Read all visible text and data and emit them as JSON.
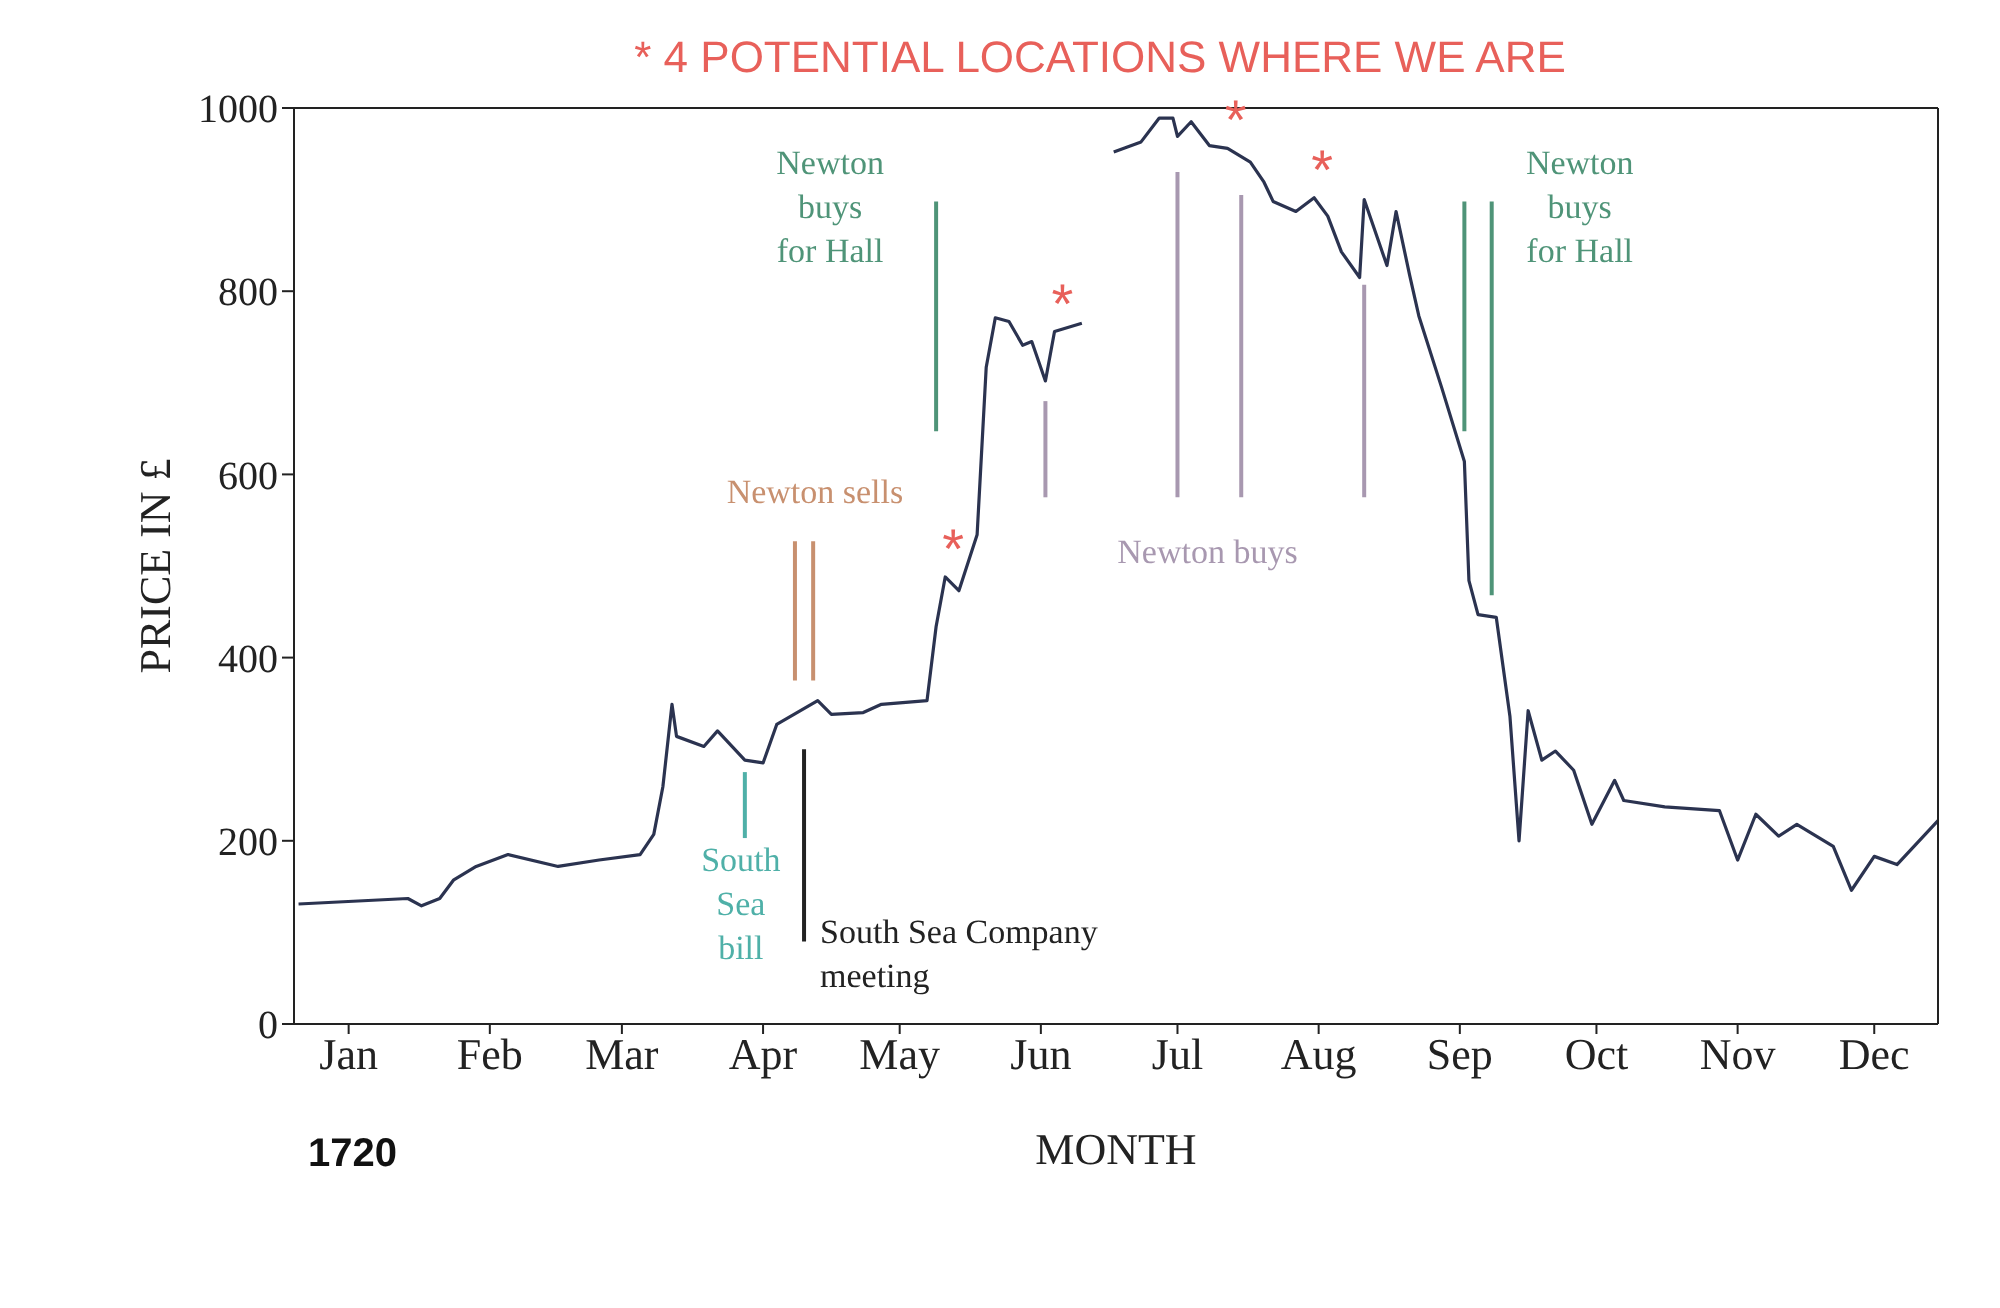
{
  "chart_data": {
    "type": "line",
    "title": "* 4 POTENTIAL LOCATIONS WHERE WE ARE",
    "xlabel": "MONTH",
    "ylabel": "PRICE IN £",
    "x": [
      "--01-04",
      "--01-28",
      "--01-31",
      "--02-04",
      "--02-07",
      "--02-12",
      "--02-19",
      "--03-01",
      "--03-10",
      "--03-19",
      "--03-22",
      "--03-24",
      "--03-26",
      "--03-27",
      "--04-02",
      "--04-05",
      "--04-11",
      "--04-15",
      "--04-18",
      "--04-27",
      "--04-30",
      "--05-07",
      "--05-11",
      "--05-21",
      "--05-23",
      "--05-25",
      "--05-28",
      "--06-01",
      "--06-03",
      "--06-05",
      "--06-08",
      "--06-11",
      "--06-13",
      "--06-16",
      "--06-18",
      "--06-24",
      "--06-28",
      "--07-01",
      "--07-07",
      "--07-11",
      "--07-14",
      "--07-15",
      "--07-18",
      "--07-22",
      "--07-26",
      "--07-31",
      "--08-03",
      "--08-05",
      "--08-10",
      "--08-14",
      "--08-17",
      "--08-20",
      "--08-24",
      "--08-25",
      "--08-30",
      "--09-01",
      "--09-04",
      "--09-06",
      "--09-11",
      "--09-16",
      "--09-17",
      "--09-19",
      "--09-23",
      "--09-26",
      "--09-28",
      "--09-30",
      "--10-03",
      "--10-06",
      "--10-10",
      "--10-14",
      "--10-19",
      "--10-21",
      "--10-30",
      "--11-11",
      "--11-15",
      "--11-19",
      "--11-24",
      "--11-28",
      "--12-06",
      "--12-10",
      "--12-15",
      "--12-20",
      "--12-29"
    ],
    "series": [
      {
        "color": "#2b3350",
        "values": [
          131,
          137,
          129,
          137,
          157,
          172,
          185,
          172,
          179,
          185,
          207,
          259,
          349,
          314,
          303,
          320,
          288,
          285,
          327,
          353,
          338,
          340,
          349,
          353,
          434,
          488,
          473,
          534,
          717,
          771,
          767,
          741,
          745,
          702,
          756,
          765,
          null,
          952,
          963,
          989,
          989,
          969,
          985,
          959,
          956,
          941,
          919,
          898,
          887,
          902,
          882,
          843,
          815,
          900,
          828,
          887,
          817,
          773,
          695,
          614,
          484,
          447,
          444,
          336,
          200,
          342,
          288,
          298,
          277,
          218,
          266,
          244,
          237,
          233,
          179,
          229,
          205,
          218,
          194,
          146,
          183,
          174,
          222
        ]
      }
    ],
    "xlim": [
      "--01-03",
      "--12-29"
    ],
    "xticks": [
      {
        "value": "--01-15",
        "label": "Jan"
      },
      {
        "value": "--02-15",
        "label": "Feb"
      },
      {
        "value": "--03-15",
        "label": "Mar"
      },
      {
        "value": "--04-15",
        "label": "Apr"
      },
      {
        "value": "--05-15",
        "label": "May"
      },
      {
        "value": "--06-15",
        "label": "Jun"
      },
      {
        "value": "--07-15",
        "label": "Jul"
      },
      {
        "value": "--08-15",
        "label": "Aug"
      },
      {
        "value": "--09-15",
        "label": "Sep"
      },
      {
        "value": "--10-15",
        "label": "Oct"
      },
      {
        "value": "--11-15",
        "label": "Nov"
      },
      {
        "value": "--12-15",
        "label": "Dec"
      }
    ],
    "ylim": [
      0,
      1000
    ],
    "yticks": [
      0,
      200,
      400,
      600,
      800,
      1000
    ],
    "ref_lines": [
      {
        "axis": "x",
        "value": "--04-11",
        "color": "#4fb0a8",
        "label": "South\nSea\nbill"
      },
      {
        "axis": "x",
        "value": "--04-24",
        "color": "#222222",
        "label": "South Sea Company\nmeeting"
      },
      {
        "axis": "x",
        "value": "--04-22",
        "color": "#c8906f",
        "label": "Newton sells"
      },
      {
        "axis": "x",
        "value": "--04-26",
        "color": "#c8906f"
      },
      {
        "axis": "x",
        "value": "--05-23",
        "color": "#4f9478",
        "label": "Newton\nbuys\nfor Hall"
      },
      {
        "axis": "x",
        "value": "--09-16",
        "color": "#4f9478"
      },
      {
        "axis": "x",
        "value": "--09-22",
        "color": "#4f9478",
        "label": "Newton\nbuys\nfor Hall"
      },
      {
        "axis": "x",
        "value": "--06-16",
        "color": "#a898b0"
      },
      {
        "axis": "x",
        "value": "--07-15",
        "color": "#a898b0",
        "label": "Newton buys"
      },
      {
        "axis": "x",
        "value": "--07-29",
        "color": "#a898b0"
      },
      {
        "axis": "x",
        "value": "--08-25",
        "color": "#a898b0"
      }
    ],
    "annotations": [
      {
        "text": "*",
        "x": "--05-25",
        "y": 488
      },
      {
        "text": "*",
        "x": "--06-18",
        "y": 756
      },
      {
        "text": "*",
        "x": "--07-26",
        "y": 956
      },
      {
        "text": "*",
        "x": "--08-14",
        "y": 902
      },
      "1720"
    ],
    "grid": false,
    "legend": false,
    "marker": "none",
    "line_style": "solid"
  }
}
